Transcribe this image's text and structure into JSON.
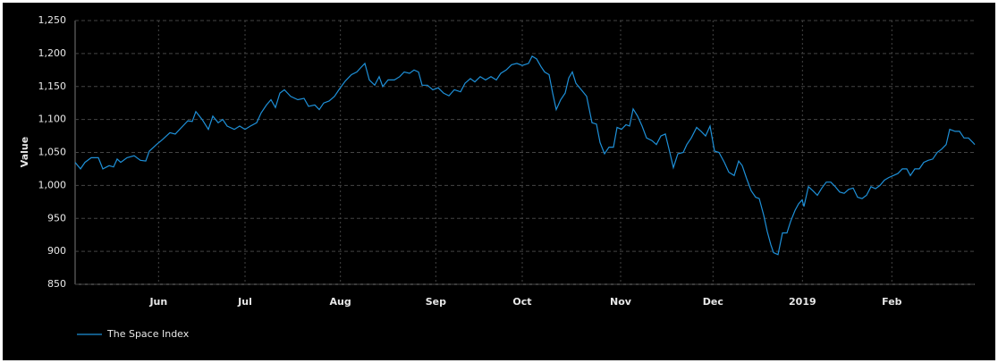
{
  "chart_data": {
    "type": "line",
    "ylabel": "Value",
    "x": [
      3,
      4.8,
      6.3,
      8.4,
      10.8,
      12.3,
      14.4,
      15.9,
      17.1,
      18.3,
      20.4,
      22.8,
      24.9,
      26.7,
      27.9,
      30.3,
      32.4,
      34.8,
      36.6,
      38.7,
      40.8,
      42.3,
      43.5,
      45.6,
      47.7,
      49.2,
      51,
      52.5,
      54,
      56.4,
      58.2,
      60,
      61.8,
      63.9,
      65.4,
      67.2,
      68.7,
      70.2,
      71.7,
      73.2,
      75.3,
      77.7,
      79.8,
      81.3,
      83.4,
      84.9,
      86.4,
      88.2,
      90,
      91.5,
      93.6,
      95.7,
      97.5,
      98.7,
      100.2,
      101.7,
      103.5,
      105,
      106.2,
      108,
      110.1,
      111.9,
      113.4,
      115.2,
      116.7,
      118.2,
      119.4,
      121.2,
      123,
      124.8,
      126.6,
      128.4,
      130.2,
      132.3,
      133.8,
      135.6,
      137.1,
      138.9,
      140.7,
      142.5,
      144.3,
      145.8,
      147.6,
      149.4,
      151.2,
      153,
      155.1,
      156.3,
      157.8,
      159.3,
      160.5,
      162,
      163.2,
      164.4,
      165.9,
      167.4,
      168.6,
      169.8,
      171,
      172.8,
      174.6,
      176.4,
      177.9,
      179.1,
      180.6,
      182.1,
      183.6,
      184.8,
      186.3,
      187.8,
      189,
      190.2,
      191.7,
      193.2,
      194.7,
      196.5,
      198,
      199.5,
      201,
      202.5,
      203.7,
      205.2,
      207,
      208.2,
      209.7,
      211.5,
      213,
      214.5,
      216,
      217.5,
      219,
      220.8,
      222.3,
      224.1,
      225.6,
      226.8,
      228.3,
      229.8,
      231.3,
      232.5,
      234,
      235.2,
      236.4,
      237.3,
      238.8,
      240.3,
      241.8,
      243,
      244.5,
      245.7,
      246.9,
      247.5,
      249,
      250.5,
      252,
      253.5,
      255,
      256.5,
      258,
      259.5,
      261,
      262.5,
      264,
      265.5,
      267,
      268.5,
      270,
      271.5,
      273,
      274.5,
      276,
      277.5,
      279,
      280.5,
      282,
      283.2,
      284.7,
      286.2,
      287.7,
      289.2,
      290.7,
      292.2,
      293.7,
      295.2,
      296.4,
      298.2,
      299.7,
      301.2,
      302.7,
      304.2,
      304.8
    ],
    "series": [
      {
        "name": "The Space Index",
        "color": "#1e90d8",
        "values": [
          1035,
          1025,
          1035,
          1042,
          1042,
          1025,
          1030,
          1028,
          1040,
          1035,
          1042,
          1045,
          1038,
          1037,
          1052,
          1062,
          1070,
          1080,
          1078,
          1088,
          1098,
          1097,
          1112,
          1100,
          1085,
          1105,
          1095,
          1100,
          1090,
          1085,
          1090,
          1085,
          1090,
          1095,
          1110,
          1122,
          1130,
          1118,
          1140,
          1145,
          1135,
          1130,
          1132,
          1120,
          1122,
          1115,
          1125,
          1128,
          1135,
          1145,
          1158,
          1168,
          1172,
          1178,
          1185,
          1160,
          1152,
          1165,
          1150,
          1160,
          1160,
          1165,
          1172,
          1170,
          1175,
          1172,
          1152,
          1152,
          1145,
          1148,
          1140,
          1136,
          1145,
          1142,
          1155,
          1162,
          1157,
          1165,
          1160,
          1165,
          1160,
          1170,
          1175,
          1183,
          1185,
          1182,
          1185,
          1196,
          1192,
          1180,
          1172,
          1168,
          1140,
          1115,
          1130,
          1140,
          1163,
          1172,
          1155,
          1145,
          1135,
          1095,
          1093,
          1065,
          1048,
          1058,
          1058,
          1088,
          1085,
          1092,
          1090,
          1116,
          1105,
          1090,
          1072,
          1068,
          1062,
          1075,
          1078,
          1050,
          1027,
          1048,
          1050,
          1062,
          1072,
          1088,
          1082,
          1075,
          1090,
          1052,
          1050,
          1035,
          1020,
          1015,
          1037,
          1030,
          1010,
          992,
          982,
          980,
          955,
          930,
          910,
          898,
          895,
          928,
          928,
          945,
          962,
          972,
          978,
          968,
          998,
          992,
          985,
          996,
          1005,
          1005,
          998,
          990,
          988,
          994,
          996,
          982,
          980,
          985,
          998,
          995,
          1000,
          1008,
          1012,
          1015,
          1018,
          1025,
          1025,
          1015,
          1025,
          1025,
          1035,
          1038,
          1040,
          1050,
          1055,
          1062,
          1085,
          1082,
          1082,
          1072,
          1072,
          1065,
          1062
        ]
      }
    ],
    "xlim": [
      3,
      304.8
    ],
    "xticks": [
      {
        "value": 31,
        "label": "Jun"
      },
      {
        "value": 60,
        "label": "Jul"
      },
      {
        "value": 92,
        "label": "Aug"
      },
      {
        "value": 124,
        "label": "Sep"
      },
      {
        "value": 153,
        "label": "Oct"
      },
      {
        "value": 186,
        "label": "Nov"
      },
      {
        "value": 217,
        "label": "Dec"
      },
      {
        "value": 247,
        "label": "2019"
      },
      {
        "value": 277,
        "label": "Feb"
      }
    ],
    "ylim": [
      850,
      1250
    ],
    "yticks": [
      850,
      900,
      950,
      {
        "value": 1000,
        "label": "1,000"
      },
      {
        "value": 1050,
        "label": "1,050"
      },
      {
        "value": 1100,
        "label": "1,100"
      },
      {
        "value": 1150,
        "label": "1,150"
      },
      {
        "value": 1200,
        "label": "1,200"
      },
      {
        "value": 1250,
        "label": "1,250"
      }
    ],
    "grid": true
  }
}
